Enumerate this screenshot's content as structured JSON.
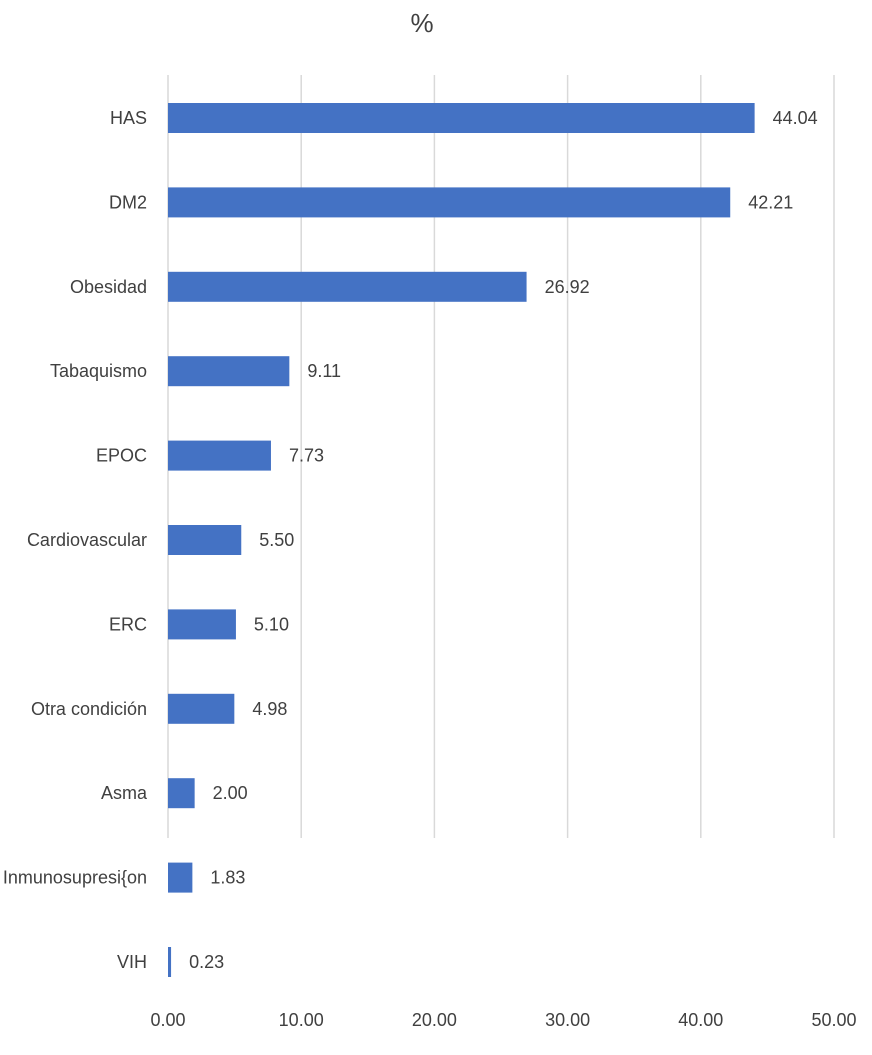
{
  "chart_data": {
    "type": "bar",
    "orientation": "horizontal",
    "title": "%",
    "xlabel": "",
    "ylabel": "",
    "categories": [
      "HAS",
      "DM2",
      "Obesidad",
      "Tabaquismo",
      "EPOC",
      "Cardiovascular",
      "ERC",
      "Otra condición",
      "Asma",
      "Inmunosupresi{on",
      "VIH"
    ],
    "values": [
      44.04,
      42.21,
      26.92,
      9.11,
      7.73,
      5.5,
      5.1,
      4.98,
      2.0,
      1.83,
      0.23
    ],
    "value_labels": [
      "44.04",
      "42.21",
      "26.92",
      "9.11",
      "7.73",
      "5.50",
      "5.10",
      "4.98",
      "2.00",
      "1.83",
      "0.23"
    ],
    "xlim": [
      0,
      50
    ],
    "x_ticks": [
      0,
      10,
      20,
      30,
      40,
      50
    ],
    "x_tick_labels": [
      "0.00",
      "10.00",
      "20.00",
      "30.00",
      "40.00",
      "50.00"
    ],
    "grid": true,
    "legend": "none",
    "bar_color": "#4472c4"
  }
}
